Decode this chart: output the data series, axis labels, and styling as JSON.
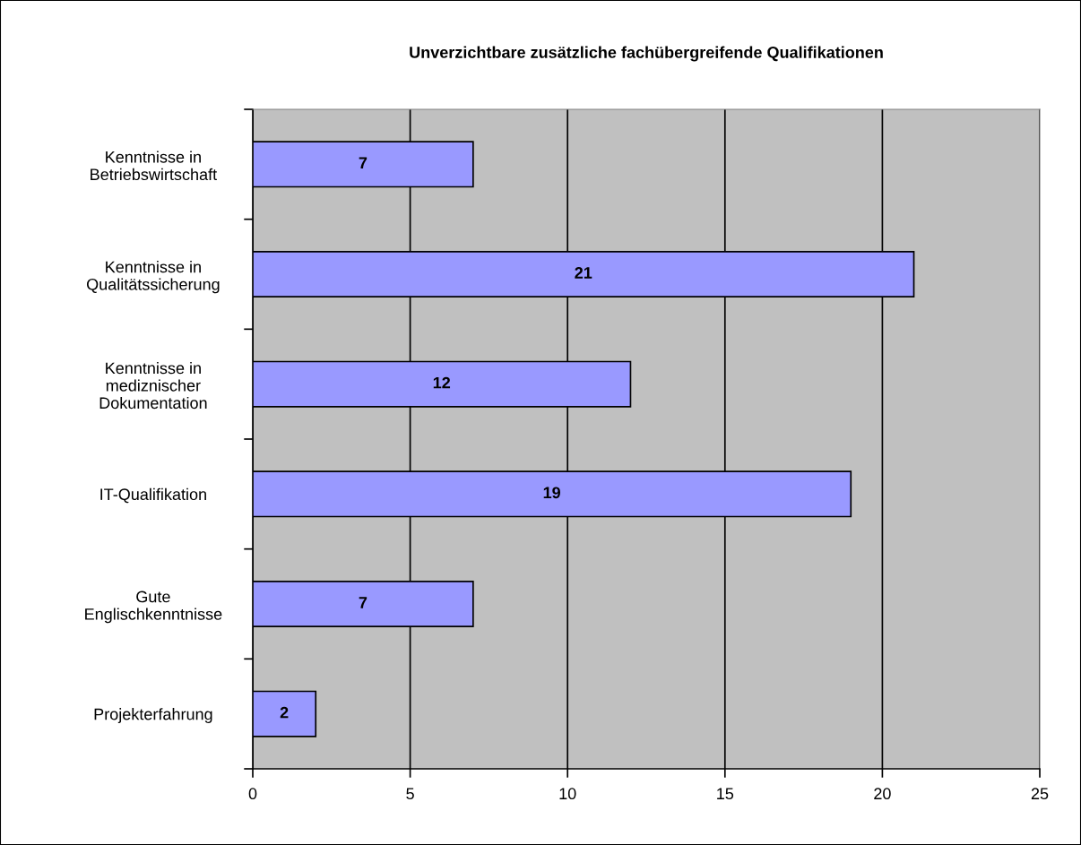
{
  "chart_data": {
    "type": "bar",
    "orientation": "horizontal",
    "title": "Unverzichtbare zusätzliche fachübergreifende Qualifikationen",
    "categories": [
      "Kenntnisse in\nBetriebswirtschaft",
      "Kenntnisse in\nQualitätssicherung",
      "Kenntnisse in\nmediznischer\nDokumentation",
      "IT-Qualifikation",
      "Gute\nEnglischkenntnisse",
      "Projekterfahrung"
    ],
    "values": [
      7,
      21,
      12,
      19,
      7,
      2
    ],
    "color": "#9999ff",
    "xlim": [
      0,
      25
    ],
    "xticks": [
      0,
      5,
      10,
      15,
      20,
      25
    ],
    "grid": "x",
    "data_labels": true,
    "legend": false
  }
}
